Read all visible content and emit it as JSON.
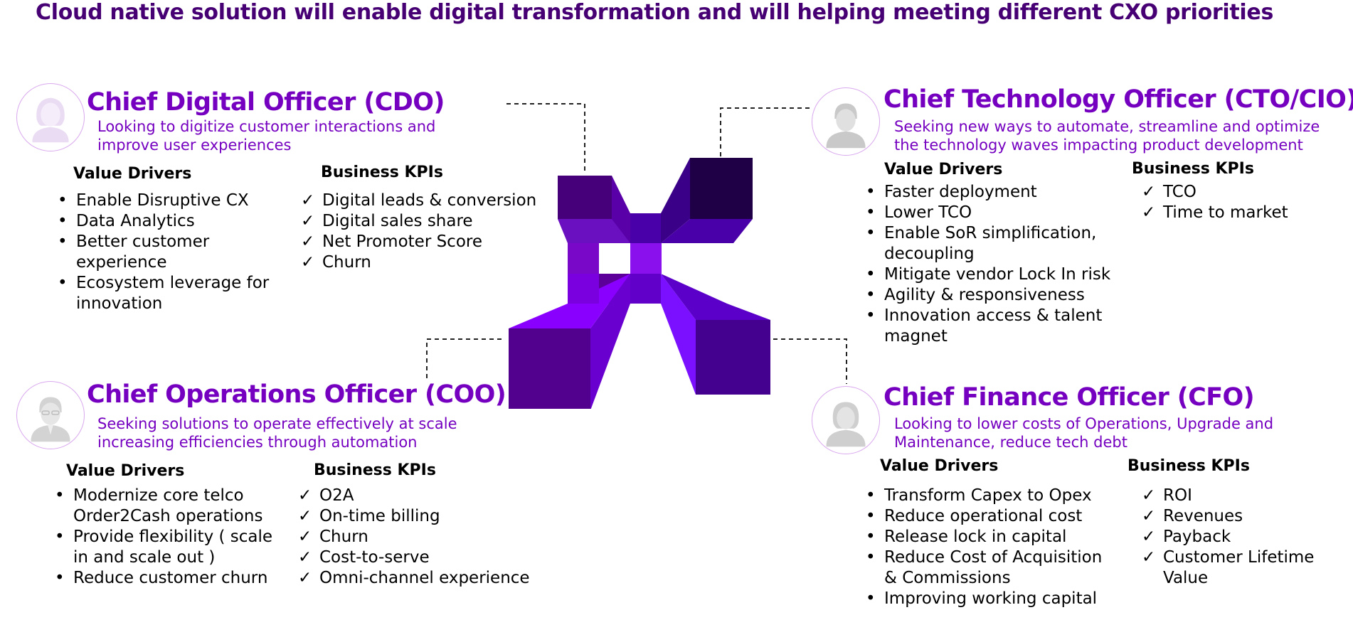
{
  "title": "Cloud native solution will enable digital transformation and will helping meeting different CXO priorities",
  "colors": {
    "title": "#460073",
    "accent": "#7500c0",
    "avatar_border": "#d9a8ee"
  },
  "roles": {
    "cdo": {
      "title": "Chief Digital Officer (CDO)",
      "desc_lines": [
        "Looking to digitize customer interactions and",
        "improve user experiences"
      ],
      "value_head": "Value Drivers",
      "values": [
        "Enable Disruptive CX",
        "Data Analytics",
        "Better customer experience",
        "Ecosystem leverage for innovation"
      ],
      "kpi_head": "Business KPIs",
      "kpis": [
        "Digital leads & conversion",
        "Digital sales share",
        "Net Promoter Score",
        "Churn"
      ]
    },
    "cto": {
      "title": "Chief Technology Officer (CTO/CIO)",
      "desc_lines": [
        "Seeking new ways to automate, streamline and optimize",
        "the technology waves impacting product development"
      ],
      "value_head": "Value Drivers",
      "values": [
        "Faster deployment",
        "Lower TCO",
        "Enable SoR simplification, decoupling",
        "Mitigate vendor Lock In risk",
        "Agility & responsiveness",
        "Innovation access & talent magnet"
      ],
      "kpi_head": "Business KPIs",
      "kpis": [
        "TCO",
        "Time to market"
      ]
    },
    "coo": {
      "title": "Chief Operations Officer (COO)",
      "desc_lines": [
        "Seeking solutions to operate effectively at scale",
        "increasing efficiencies through automation"
      ],
      "value_head": "Value Drivers",
      "values": [
        "Modernize core telco Order2Cash operations",
        "Provide flexibility ( scale in and scale out )",
        "Reduce customer churn"
      ],
      "kpi_head": "Business KPIs",
      "kpis": [
        "O2A",
        "On-time billing",
        "Churn",
        "Cost-to-serve",
        "Omni-channel experience"
      ]
    },
    "cfo": {
      "title": "Chief Finance Officer (CFO)",
      "desc_lines": [
        "Looking to lower costs of Operations, Upgrade and",
        "Maintenance, reduce tech debt"
      ],
      "value_head": "Value Drivers",
      "values": [
        "Transform Capex to Opex",
        "Reduce operational cost",
        "Release lock in capital",
        "Reduce Cost of Acquisition & Commissions",
        "Improving working capital"
      ],
      "kpi_head": "Business KPIs",
      "kpis": [
        "ROI",
        "Revenues",
        "Payback",
        "Customer Lifetime Value"
      ]
    }
  }
}
